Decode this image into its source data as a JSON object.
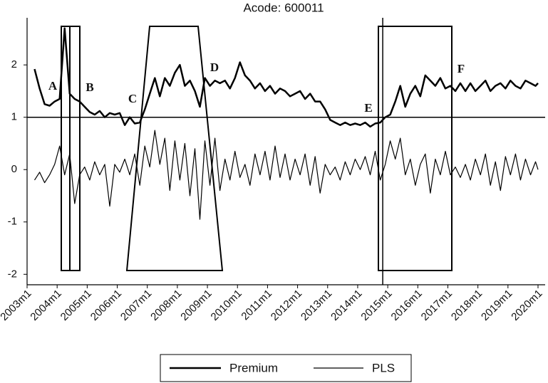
{
  "chart_data": {
    "type": "line",
    "title": "Acode: 600011",
    "x": [
      "2003m4",
      "2003m6",
      "2003m8",
      "2003m10",
      "2003m12",
      "2004m2",
      "2004m4",
      "2004m6",
      "2004m8",
      "2004m10",
      "2004m12",
      "2005m2",
      "2005m4",
      "2005m6",
      "2005m8",
      "2005m10",
      "2005m12",
      "2006m2",
      "2006m4",
      "2006m6",
      "2006m8",
      "2006m10",
      "2006m12",
      "2007m2",
      "2007m4",
      "2007m6",
      "2007m8",
      "2007m10",
      "2007m12",
      "2008m2",
      "2008m4",
      "2008m6",
      "2008m8",
      "2008m10",
      "2008m12",
      "2009m2",
      "2009m4",
      "2009m6",
      "2009m8",
      "2009m10",
      "2009m12",
      "2010m2",
      "2010m4",
      "2010m6",
      "2010m8",
      "2010m10",
      "2010m12",
      "2011m2",
      "2011m4",
      "2011m6",
      "2011m8",
      "2011m10",
      "2011m12",
      "2012m2",
      "2012m4",
      "2012m6",
      "2012m8",
      "2012m10",
      "2012m12",
      "2013m2",
      "2013m4",
      "2013m6",
      "2013m8",
      "2013m10",
      "2013m12",
      "2014m2",
      "2014m4",
      "2014m6",
      "2014m8",
      "2014m10",
      "2014m12",
      "2015m2",
      "2015m4",
      "2015m6",
      "2015m8",
      "2015m10",
      "2015m12",
      "2016m2",
      "2016m4",
      "2016m6",
      "2016m8",
      "2016m10",
      "2016m12",
      "2017m2",
      "2017m4",
      "2017m6",
      "2017m8",
      "2017m10",
      "2017m12",
      "2018m2",
      "2018m4",
      "2018m6",
      "2018m8",
      "2018m10",
      "2018m12",
      "2019m2",
      "2019m4",
      "2019m6",
      "2019m8",
      "2019m10",
      "2019m12",
      "2020m1"
    ],
    "series": [
      {
        "name": "Premium",
        "color": "#000000",
        "width": 2.5,
        "values": [
          1.92,
          1.55,
          1.25,
          1.22,
          1.3,
          1.35,
          2.7,
          1.45,
          1.35,
          1.3,
          1.2,
          1.1,
          1.05,
          1.12,
          1.0,
          1.08,
          1.05,
          1.08,
          0.85,
          1.0,
          0.88,
          0.9,
          1.15,
          1.45,
          1.75,
          1.4,
          1.75,
          1.6,
          1.85,
          2.0,
          1.6,
          1.7,
          1.5,
          1.2,
          1.75,
          1.6,
          1.7,
          1.65,
          1.7,
          1.55,
          1.75,
          2.05,
          1.8,
          1.7,
          1.55,
          1.65,
          1.5,
          1.6,
          1.45,
          1.55,
          1.5,
          1.4,
          1.45,
          1.5,
          1.35,
          1.45,
          1.3,
          1.3,
          1.15,
          0.95,
          0.9,
          0.85,
          0.9,
          0.85,
          0.88,
          0.85,
          0.9,
          0.82,
          0.88,
          0.9,
          1.0,
          1.05,
          1.3,
          1.6,
          1.2,
          1.45,
          1.6,
          1.4,
          1.8,
          1.7,
          1.6,
          1.75,
          1.55,
          1.6,
          1.5,
          1.65,
          1.5,
          1.65,
          1.5,
          1.6,
          1.7,
          1.5,
          1.6,
          1.65,
          1.55,
          1.7,
          1.6,
          1.55,
          1.7,
          1.65,
          1.6,
          1.65
        ]
      },
      {
        "name": "PLS",
        "color": "#000000",
        "width": 1.2,
        "values": [
          -0.2,
          -0.05,
          -0.25,
          -0.1,
          0.1,
          0.45,
          -0.1,
          0.3,
          -0.65,
          -0.1,
          0.05,
          -0.2,
          0.15,
          -0.1,
          0.1,
          -0.7,
          0.1,
          -0.05,
          0.2,
          -0.1,
          0.3,
          -0.3,
          0.45,
          0.05,
          0.75,
          0.1,
          0.6,
          -0.4,
          0.55,
          -0.2,
          0.5,
          -0.5,
          0.4,
          -0.95,
          0.55,
          -0.3,
          0.6,
          -0.4,
          0.2,
          -0.2,
          0.35,
          -0.15,
          0.1,
          -0.3,
          0.3,
          -0.1,
          0.35,
          -0.2,
          0.45,
          -0.15,
          0.3,
          -0.2,
          0.2,
          -0.1,
          0.3,
          -0.3,
          0.25,
          -0.45,
          0.1,
          -0.1,
          0.05,
          -0.2,
          0.15,
          -0.1,
          0.2,
          0.0,
          0.25,
          -0.1,
          0.35,
          -0.2,
          0.1,
          0.55,
          0.2,
          0.6,
          -0.1,
          0.2,
          -0.3,
          0.1,
          0.3,
          -0.45,
          0.2,
          -0.1,
          0.35,
          -0.1,
          0.05,
          -0.15,
          0.1,
          -0.2,
          0.2,
          -0.1,
          0.3,
          -0.3,
          0.15,
          -0.4,
          0.25,
          -0.1,
          0.3,
          -0.2,
          0.2,
          -0.1,
          0.15,
          0.0
        ]
      }
    ],
    "ylim": [
      -2.2,
      2.9
    ],
    "yticks": [
      -2,
      -1,
      0,
      1,
      2
    ],
    "xticks": [
      "2003m1",
      "2004m1",
      "2005m1",
      "2006m1",
      "2007m1",
      "2008m1",
      "2009m1",
      "2010m1",
      "2011m1",
      "2012m1",
      "2013m1",
      "2014m1",
      "2015m1",
      "2016m1",
      "2017m1",
      "2018m1",
      "2019m1",
      "2020m1"
    ],
    "reference_lines": {
      "y": 1,
      "x": "2014m11"
    },
    "annotations": [
      "A",
      "B",
      "C",
      "D",
      "E",
      "F"
    ],
    "legend": "bottom"
  }
}
